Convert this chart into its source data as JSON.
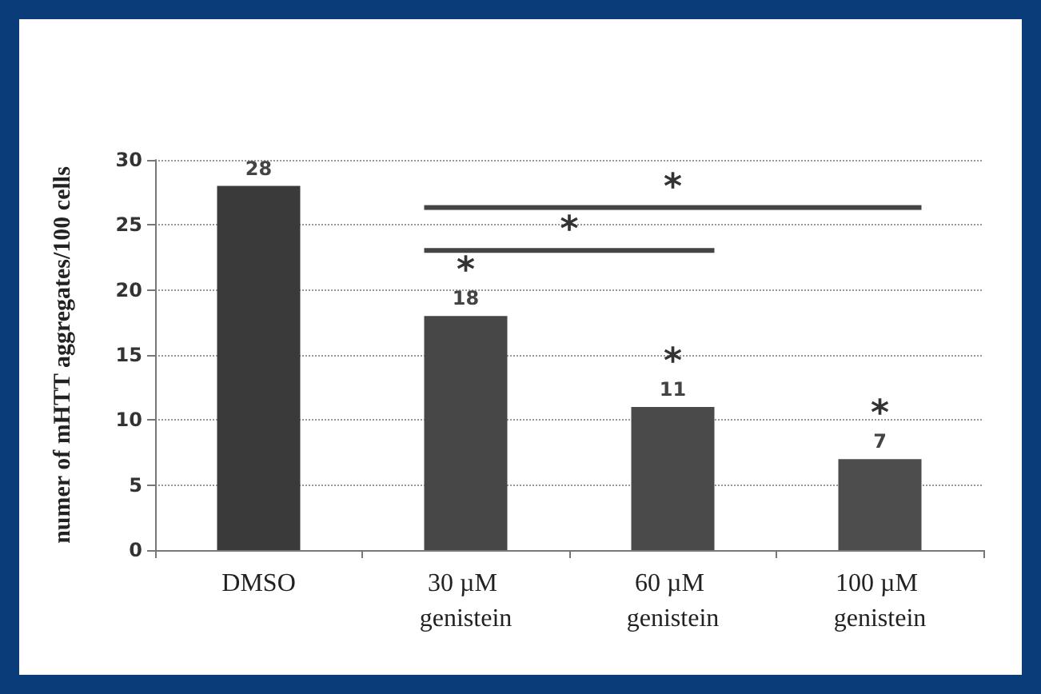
{
  "chart_data": {
    "type": "bar",
    "ylabel": "numer of mHTT aggregates/100 cells",
    "categories": [
      "DMSO",
      "30 µM genistein",
      "60 µM genistein",
      "100 µM genistein"
    ],
    "values": [
      28,
      18,
      11,
      7
    ],
    "colors": [
      "#3a3a3a",
      "#474747",
      "#4a4a4a",
      "#4d4d4d"
    ],
    "ylim": [
      0,
      30
    ],
    "yticks": [
      0,
      5,
      10,
      15,
      20,
      25,
      30
    ],
    "grid": "y",
    "data_labels": true,
    "annotations": [
      {
        "text": "*",
        "x": "30 µM genistein",
        "y": 18
      },
      {
        "text": "*",
        "x": "60 µM genistein",
        "y": 11
      },
      {
        "text": "*",
        "x": "100 µM genistein",
        "y": 7
      },
      "*",
      "*"
    ]
  }
}
